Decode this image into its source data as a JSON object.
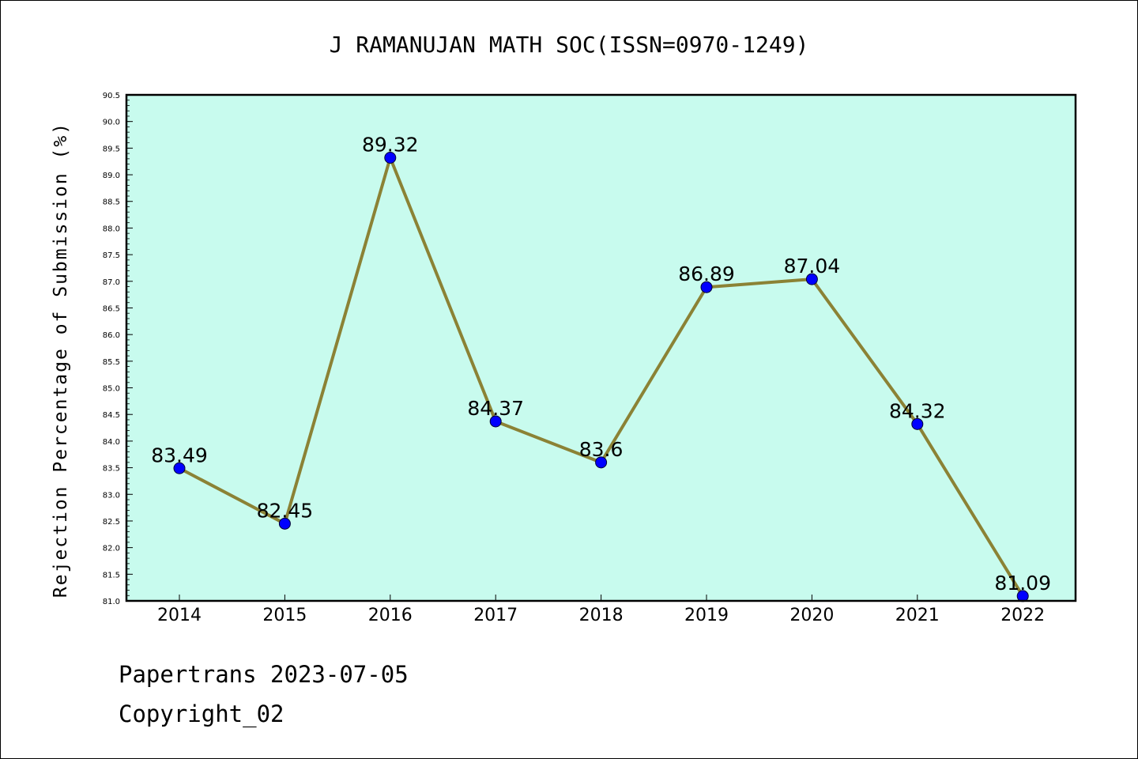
{
  "chart_data": {
    "type": "line",
    "title": "J RAMANUJAN MATH SOC(ISSN=0970-1249)",
    "xlabel": "",
    "ylabel": "Rejection Percentage of Submission (%)",
    "categories": [
      "2014",
      "2015",
      "2016",
      "2017",
      "2018",
      "2019",
      "2020",
      "2021",
      "2022"
    ],
    "series": [
      {
        "values": [
          83.49,
          82.45,
          89.32,
          84.37,
          83.6,
          86.89,
          87.04,
          84.32,
          81.09
        ],
        "data_labels": [
          "83.49",
          "82.45",
          "89.32",
          "84.37",
          "83.6",
          "86.89",
          "87.04",
          "84.32",
          "81.09"
        ]
      }
    ],
    "ylim": [
      81.0,
      90.5
    ],
    "yticks": [
      "81.0",
      "81.5",
      "82.0",
      "82.5",
      "83.0",
      "83.5",
      "84.0",
      "84.5",
      "85.0",
      "85.5",
      "86.0",
      "86.5",
      "87.0",
      "87.5",
      "88.0",
      "88.5",
      "89.0",
      "89.5",
      "90.0",
      "90.5"
    ],
    "grid": false,
    "legend": "none",
    "colors": {
      "plot_background": "#c8fbee",
      "line": "#8b8235",
      "marker": "#0000ff"
    }
  },
  "footer": {
    "line1": "Papertrans 2023-07-05",
    "line2": "Copyright_02"
  }
}
